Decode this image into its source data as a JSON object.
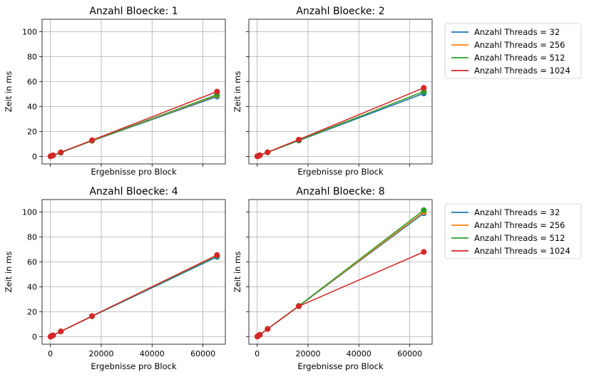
{
  "colors": {
    "c32": "#1f77b4",
    "c256": "#ff7f0e",
    "c512": "#2ca02c",
    "c1024": "#d62728"
  },
  "chart_data": [
    {
      "type": "line",
      "title": "Anzahl Bloecke: 1",
      "xlabel": "Ergebnisse pro Block",
      "ylabel": "Zeit in ms",
      "x": [
        64,
        256,
        1024,
        4096,
        16384,
        65536
      ],
      "xlim": [
        -3277,
        68813
      ],
      "ylim": [
        -6,
        110
      ],
      "xticks": [
        0,
        20000,
        40000,
        60000
      ],
      "yticks": [
        0,
        20,
        40,
        60,
        80,
        100
      ],
      "show_xticklabels": false,
      "show_yticklabels": true,
      "grid": true,
      "series": [
        {
          "name": "Anzahl Threads = 32",
          "color": "#1f77b4",
          "values": [
            0.1,
            0.3,
            0.8,
            3.0,
            12.5,
            48.0
          ]
        },
        {
          "name": "Anzahl Threads = 256",
          "color": "#ff7f0e",
          "values": [
            0.1,
            0.3,
            0.8,
            3.1,
            12.6,
            49.0
          ]
        },
        {
          "name": "Anzahl Threads = 512",
          "color": "#2ca02c",
          "values": [
            0.1,
            0.3,
            0.8,
            3.1,
            12.7,
            49.5
          ]
        },
        {
          "name": "Anzahl Threads = 1024",
          "color": "#d62728",
          "values": [
            0.1,
            0.3,
            0.9,
            3.3,
            13.0,
            52.0
          ]
        }
      ]
    },
    {
      "type": "line",
      "title": "Anzahl Bloecke: 2",
      "xlabel": "Ergebnisse pro Block",
      "ylabel": "Zeit in ms",
      "x": [
        64,
        256,
        1024,
        4096,
        16384,
        65536
      ],
      "xlim": [
        -3277,
        68813
      ],
      "ylim": [
        -6,
        110
      ],
      "xticks": [
        0,
        20000,
        40000,
        60000
      ],
      "yticks": [
        0,
        20,
        40,
        60,
        80,
        100
      ],
      "show_xticklabels": false,
      "show_yticklabels": false,
      "grid": true,
      "legend": "right",
      "series": [
        {
          "name": "Anzahl Threads = 32",
          "color": "#1f77b4",
          "values": [
            0.1,
            0.3,
            0.9,
            3.2,
            12.7,
            50.5
          ]
        },
        {
          "name": "Anzahl Threads = 256",
          "color": "#ff7f0e",
          "values": [
            0.1,
            0.3,
            0.9,
            3.3,
            13.0,
            52.0
          ]
        },
        {
          "name": "Anzahl Threads = 512",
          "color": "#2ca02c",
          "values": [
            0.1,
            0.3,
            0.9,
            3.3,
            13.0,
            52.0
          ]
        },
        {
          "name": "Anzahl Threads = 1024",
          "color": "#d62728",
          "values": [
            0.1,
            0.3,
            0.9,
            3.4,
            13.5,
            55.0
          ]
        }
      ]
    },
    {
      "type": "line",
      "title": "Anzahl Bloecke: 4",
      "xlabel": "Ergebnisse pro Block",
      "ylabel": "Zeit in ms",
      "x": [
        64,
        256,
        1024,
        4096,
        16384,
        65536
      ],
      "xlim": [
        -3277,
        68813
      ],
      "ylim": [
        -6,
        110
      ],
      "xticks": [
        0,
        20000,
        40000,
        60000
      ],
      "yticks": [
        0,
        20,
        40,
        60,
        80,
        100
      ],
      "show_xticklabels": true,
      "show_yticklabels": true,
      "grid": true,
      "series": [
        {
          "name": "Anzahl Threads = 32",
          "color": "#1f77b4",
          "values": [
            0.1,
            0.4,
            1.1,
            4.2,
            16.3,
            64.0
          ]
        },
        {
          "name": "Anzahl Threads = 256",
          "color": "#ff7f0e",
          "values": [
            0.1,
            0.4,
            1.1,
            4.2,
            16.5,
            65.0
          ]
        },
        {
          "name": "Anzahl Threads = 512",
          "color": "#2ca02c",
          "values": [
            0.1,
            0.4,
            1.1,
            4.2,
            16.5,
            65.0
          ]
        },
        {
          "name": "Anzahl Threads = 1024",
          "color": "#d62728",
          "values": [
            0.1,
            0.4,
            1.1,
            4.3,
            16.6,
            65.5
          ]
        }
      ]
    },
    {
      "type": "line",
      "title": "Anzahl Bloecke: 8",
      "xlabel": "Ergebnisse pro Block",
      "ylabel": "Zeit in ms",
      "x": [
        64,
        256,
        1024,
        4096,
        16384,
        65536
      ],
      "xlim": [
        -3277,
        68813
      ],
      "ylim": [
        -6,
        110
      ],
      "xticks": [
        0,
        20000,
        40000,
        60000
      ],
      "yticks": [
        0,
        20,
        40,
        60,
        80,
        100
      ],
      "show_xticklabels": true,
      "show_yticklabels": false,
      "grid": true,
      "legend": "right",
      "series": [
        {
          "name": "Anzahl Threads = 32",
          "color": "#1f77b4",
          "values": [
            0.2,
            0.5,
            1.6,
            6.2,
            24.5,
            99.0
          ]
        },
        {
          "name": "Anzahl Threads = 256",
          "color": "#ff7f0e",
          "values": [
            0.2,
            0.5,
            1.6,
            6.2,
            24.6,
            100.0
          ]
        },
        {
          "name": "Anzahl Threads = 512",
          "color": "#2ca02c",
          "values": [
            0.2,
            0.5,
            1.6,
            6.3,
            24.8,
            101.5
          ]
        },
        {
          "name": "Anzahl Threads = 1024",
          "color": "#d62728",
          "values": [
            0.2,
            0.5,
            1.6,
            6.2,
            24.5,
            68.0
          ]
        }
      ]
    }
  ]
}
